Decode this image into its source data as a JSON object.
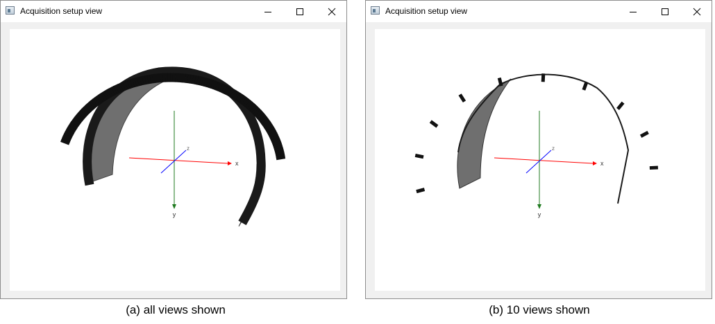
{
  "windows": [
    {
      "title": "Acquisition setup view",
      "caption": "(a) all views shown",
      "view_count": "all"
    },
    {
      "title": "Acquisition setup view",
      "caption": "(b) 10 views shown",
      "view_count": 10
    }
  ],
  "axes": {
    "x": "x",
    "y": "y",
    "z": "z"
  },
  "icons": {
    "app": "app-window-icon",
    "minimize": "minimize-icon",
    "maximize": "maximize-icon",
    "close": "close-icon"
  },
  "colors": {
    "x_axis": "#ff0000",
    "y_axis": "#1f7a1f",
    "z_axis": "#0000ff",
    "detector": "#111111",
    "source_track": "#666666"
  }
}
